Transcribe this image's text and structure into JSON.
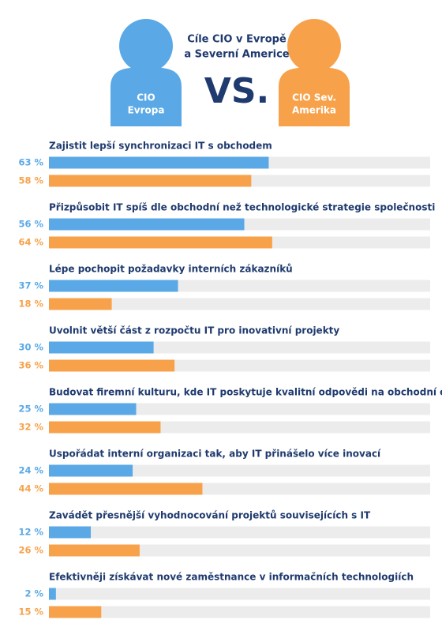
{
  "chart_data": {
    "type": "bar",
    "orientation": "horizontal",
    "title": [
      "Cíle CIO v Evropě",
      "a Severní Americe"
    ],
    "vs_label": "VS.",
    "categories": [
      "Zajistit lepší synchronizaci IT s obchodem",
      "Přizpůsobit IT spíš dle obchodní než technologické strategie společnosti",
      "Lépe pochopit požadavky interních zákazníků",
      "Uvolnit větší část z rozpočtu IT pro inovativní projekty",
      "Budovat firemní kulturu, kde IT poskytuje kvalitní odpovědi na obchodní otázky",
      "Uspořádat interní organizaci tak, aby IT přinášelo více inovací",
      "Zavádět přesnější vyhodnocování projektů souvisejících s IT",
      "Efektivněji získávat nové zaměstnance v informačních technologiích"
    ],
    "series": [
      {
        "name": [
          "CIO",
          "Evropa"
        ],
        "color": "#5aa9e6",
        "values": [
          63,
          56,
          37,
          30,
          25,
          24,
          12,
          2
        ],
        "value_labels": [
          "63 %",
          "56 %",
          "37 %",
          "30 %",
          "25 %",
          "24 %",
          "12 %",
          "2 %"
        ]
      },
      {
        "name": [
          "CIO Sev.",
          "Amerika"
        ],
        "color": "#f7a24b",
        "values": [
          58,
          64,
          18,
          36,
          32,
          44,
          26,
          15
        ],
        "value_labels": [
          "58 %",
          "64 %",
          "18 %",
          "36 %",
          "32 %",
          "44 %",
          "26 %",
          "15 %"
        ]
      }
    ]
  }
}
